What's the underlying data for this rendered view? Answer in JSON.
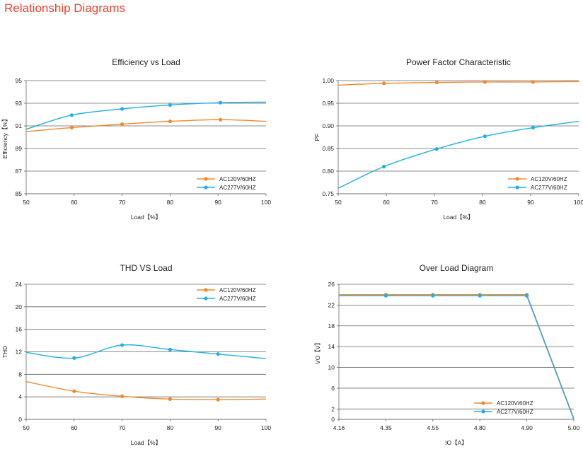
{
  "page_title": "Relationship Diagrams",
  "colors": {
    "orange": "#f0882c",
    "blue": "#1fb0e3",
    "grid": "#666666",
    "title": "#e8412c"
  },
  "chart_data": [
    {
      "id": "efficiency",
      "type": "line",
      "title": "Efficiency vs Load",
      "xlabel": "Load【%】",
      "ylabel": "Efficiency【%】",
      "xlim": [
        50,
        100
      ],
      "ylim": [
        85,
        95
      ],
      "xticks": [
        "50",
        "60",
        "70",
        "80",
        "90",
        "100"
      ],
      "yticks": [
        "85",
        "87",
        "89",
        "91",
        "93",
        "95"
      ],
      "legend_position": "bottom-right",
      "series": [
        {
          "name": "AC120V/60HZ",
          "color": "#f0882c",
          "x": [
            50,
            59.5,
            70,
            80,
            90.5,
            100
          ],
          "y": [
            90.5,
            90.85,
            91.15,
            91.4,
            91.55,
            91.4
          ],
          "markers": [
            1,
            2,
            3,
            4
          ]
        },
        {
          "name": "AC277V/60HZ",
          "color": "#1fb0e3",
          "x": [
            50,
            59.5,
            70,
            80,
            90.5,
            100
          ],
          "y": [
            90.7,
            91.95,
            92.5,
            92.85,
            93.05,
            93.1
          ],
          "markers": [
            1,
            2,
            3,
            4
          ]
        }
      ]
    },
    {
      "id": "pf",
      "type": "line",
      "title": "Power Factor Characteristic",
      "xlabel": "Load【%】",
      "ylabel": "PF",
      "xlim": [
        50,
        100
      ],
      "ylim": [
        0.75,
        1.0
      ],
      "xticks": [
        "50",
        "60",
        "70",
        "80",
        "90",
        "100"
      ],
      "yticks": [
        "0.75",
        "0.80",
        "0.85",
        "0.90",
        "0.95",
        "1.00"
      ],
      "legend_position": "bottom-right",
      "series": [
        {
          "name": "AC120V/60HZ",
          "color": "#f0882c",
          "x": [
            50,
            59.5,
            70.5,
            80.5,
            90.5,
            100
          ],
          "y": [
            0.99,
            0.994,
            0.996,
            0.997,
            0.997,
            0.998
          ],
          "markers": [
            1,
            2,
            3,
            4
          ]
        },
        {
          "name": "AC277V/60HZ",
          "color": "#1fb0e3",
          "x": [
            50,
            59.5,
            70.5,
            80.5,
            90.5,
            100
          ],
          "y": [
            0.762,
            0.81,
            0.849,
            0.877,
            0.896,
            0.91
          ],
          "markers": [
            1,
            2,
            3,
            4
          ]
        }
      ]
    },
    {
      "id": "thd",
      "type": "line",
      "title": "THD VS Load",
      "xlabel": "Load【%】",
      "ylabel": "THD",
      "xlim": [
        50,
        100
      ],
      "ylim": [
        0,
        24
      ],
      "xticks": [
        "50",
        "60",
        "70",
        "80",
        "90",
        "100"
      ],
      "yticks": [
        "0",
        "4",
        "8",
        "12",
        "16",
        "20",
        "24"
      ],
      "legend_position": "top-right",
      "series": [
        {
          "name": "AC120V/60HZ",
          "color": "#f0882c",
          "x": [
            50,
            60,
            70,
            80,
            90,
            100
          ],
          "y": [
            6.7,
            5.0,
            4.1,
            3.6,
            3.5,
            3.6
          ],
          "markers": [
            1,
            2,
            3,
            4
          ]
        },
        {
          "name": "AC277V/60HZ",
          "color": "#1fb0e3",
          "x": [
            50,
            60,
            70,
            80,
            90,
            100
          ],
          "y": [
            11.9,
            10.9,
            13.2,
            12.4,
            11.6,
            10.8
          ],
          "markers": [
            1,
            2,
            3,
            4
          ]
        }
      ]
    },
    {
      "id": "overload",
      "type": "line",
      "title": "Over Load Diagram",
      "xlabel": "IO【A】",
      "ylabel": "VO【V】",
      "x_categorical": true,
      "xticks": [
        "4.16",
        "4.35",
        "4.55",
        "4.80",
        "4.90",
        "5.00"
      ],
      "ylim": [
        0,
        26
      ],
      "yticks": [
        "0",
        "2",
        "6",
        "10",
        "14",
        "18",
        "22",
        "26"
      ],
      "legend_position": "bottom-right",
      "series": [
        {
          "name": "AC120V/60HZ",
          "color": "#f0882c",
          "x": [
            0,
            1,
            2,
            3,
            4,
            5
          ],
          "y": [
            24.0,
            24.0,
            24.0,
            24.0,
            24.0,
            0.2
          ],
          "markers": [
            1,
            2,
            3,
            4
          ]
        },
        {
          "name": "AC277V/60HZ",
          "color": "#1fb0e3",
          "x": [
            0,
            1,
            2,
            3,
            4,
            5
          ],
          "y": [
            23.8,
            23.8,
            23.8,
            23.8,
            23.8,
            0.0
          ],
          "markers": [
            1,
            2,
            3,
            4
          ]
        }
      ]
    }
  ]
}
